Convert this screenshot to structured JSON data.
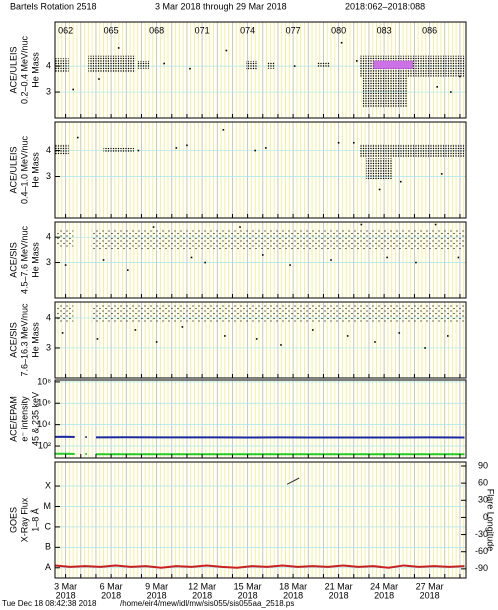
{
  "header": {
    "title": "Bartels Rotation 2518",
    "date_range": "3 Mar 2018 through 29 Mar 2018",
    "doy_range": "2018:062–2018:088"
  },
  "time_axis": {
    "xlim": [
      61.3,
      88.4
    ],
    "xticks": [
      62,
      63,
      64,
      65,
      66,
      67,
      68,
      69,
      70,
      71,
      72,
      73,
      74,
      75,
      76,
      77,
      78,
      79,
      80,
      81,
      82,
      83,
      84,
      85,
      86,
      87,
      88
    ],
    "doy_ticks": [
      {
        "value": 62,
        "label": "062"
      },
      {
        "value": 65,
        "label": "065"
      },
      {
        "value": 68,
        "label": "068"
      },
      {
        "value": 71,
        "label": "071"
      },
      {
        "value": 74,
        "label": "074"
      },
      {
        "value": 77,
        "label": "077"
      },
      {
        "value": 80,
        "label": "080"
      },
      {
        "value": 83,
        "label": "083"
      },
      {
        "value": 86,
        "label": "086"
      }
    ],
    "date_ticks": [
      {
        "value": 62,
        "label": "3 Mar"
      },
      {
        "value": 65,
        "label": "6 Mar"
      },
      {
        "value": 68,
        "label": "9 Mar"
      },
      {
        "value": 71,
        "label": "12 Mar"
      },
      {
        "value": 74,
        "label": "15 Mar"
      },
      {
        "value": 77,
        "label": "18 Mar"
      },
      {
        "value": 80,
        "label": "21 Mar"
      },
      {
        "value": 83,
        "label": "24 Mar"
      },
      {
        "value": 86,
        "label": "27 Mar"
      }
    ],
    "year": "2018"
  },
  "footer": {
    "timestamp": "Tue Dec 18 08:42:38 2018",
    "path": "/home/eir4/mew/idl/mw/sis055/sis055aa_2518.ps"
  },
  "chart_data": [
    {
      "type": "scatter",
      "ylabel": [
        "ACE/ULEIS",
        "0.2–0.4 MeV/nuc",
        "He Mass"
      ],
      "ylim": [
        2,
        5.7
      ],
      "yticks": [
        3,
        4
      ],
      "density": "dense",
      "clusters": [
        [
          61.3,
          62.2,
          3.75,
          4.3
        ],
        [
          63.5,
          66.6,
          3.75,
          4.4
        ],
        [
          66.7,
          67.5,
          3.9,
          4.2
        ],
        [
          73.9,
          74.6,
          3.85,
          4.2
        ],
        [
          75.3,
          75.8,
          3.9,
          4.15
        ],
        [
          78.6,
          79.4,
          3.95,
          4.15
        ],
        [
          81.4,
          88.3,
          3.6,
          4.4
        ],
        [
          81.6,
          84.5,
          2.4,
          3.6
        ]
      ],
      "highlight_color": "#c050e0",
      "highlight_clusters": [
        [
          82.3,
          84.9,
          3.9,
          4.2
        ]
      ],
      "points": {
        "x": [
          62.5,
          64.2,
          65.5,
          68.5,
          70.2,
          72.6,
          77.1,
          80.2,
          81.2,
          86.5,
          87.4,
          88.0
        ],
        "y": [
          3.1,
          3.5,
          4.7,
          4.1,
          3.9,
          4.6,
          4.0,
          4.9,
          4.2,
          3.2,
          3.0,
          3.6
        ]
      }
    },
    {
      "type": "scatter",
      "ylabel": [
        "ACE/ULEIS",
        "0.4–1.0 MeV/nuc",
        "He Mass"
      ],
      "ylim": [
        1.4,
        5.1
      ],
      "yticks": [
        3,
        4
      ],
      "density": "dense",
      "clusters": [
        [
          61.3,
          62.2,
          3.85,
          4.25
        ],
        [
          64.5,
          66.5,
          3.95,
          4.1
        ],
        [
          81.4,
          88.3,
          3.75,
          4.25
        ],
        [
          81.8,
          83.5,
          2.9,
          3.7
        ]
      ],
      "highlight_color": "#c050e0",
      "highlight_clusters": [],
      "points": {
        "x": [
          62.8,
          66.8,
          69.3,
          70.0,
          72.4,
          74.5,
          75.2,
          80.0,
          81.0,
          82.7,
          84.1,
          86.8
        ],
        "y": [
          4.5,
          4.0,
          4.1,
          4.2,
          4.8,
          4.0,
          4.1,
          4.3,
          4.3,
          2.5,
          2.8,
          3.1
        ]
      }
    },
    {
      "type": "scatter",
      "ylabel": [
        "ACE/SIS",
        "4.5–7.6 MeV/nuc",
        "He Mass"
      ],
      "ylim": [
        1.6,
        4.6
      ],
      "yticks": [
        3,
        4
      ],
      "density": "sparse",
      "clusters": [
        [
          61.3,
          62.5,
          3.6,
          4.3
        ],
        [
          63.7,
          88.3,
          3.5,
          4.3
        ]
      ],
      "highlight_color": "#c050e0",
      "highlight_clusters": [],
      "points": {
        "x": [
          62.0,
          64.5,
          66.1,
          67.8,
          70.3,
          71.2,
          73.5,
          75.0,
          76.8,
          79.5,
          81.5,
          83.2,
          85.1,
          86.4,
          87.9
        ],
        "y": [
          2.9,
          3.1,
          2.7,
          4.4,
          3.2,
          3.0,
          4.4,
          3.3,
          2.9,
          3.1,
          4.5,
          3.2,
          3.0,
          4.5,
          3.2
        ]
      }
    },
    {
      "type": "scatter",
      "ylabel": [
        "ACE/SIS",
        "7.6–16.3 MeV/nuc",
        "He Mass"
      ],
      "ylim": [
        2,
        4.53
      ],
      "yticks": [
        3,
        4
      ],
      "density": "sparse",
      "clusters": [
        [
          61.3,
          62.5,
          3.85,
          4.45
        ],
        [
          63.7,
          88.3,
          3.85,
          4.45
        ]
      ],
      "highlight_color": "#c050e0",
      "highlight_clusters": [],
      "points": {
        "x": [
          61.8,
          64.1,
          66.6,
          68.0,
          69.7,
          72.5,
          74.6,
          76.2,
          78.3,
          80.6,
          82.4,
          84.0,
          85.7,
          87.2
        ],
        "y": [
          3.5,
          3.3,
          3.6,
          3.2,
          3.7,
          3.4,
          3.3,
          3.1,
          3.6,
          3.4,
          3.2,
          3.5,
          3.0,
          3.4
        ]
      }
    },
    {
      "type": "line",
      "ylabel": [
        "ACE/EPAM",
        "e⁻ intensity",
        "45 & 235 keV"
      ],
      "log": true,
      "ylim": [
        7.6,
        150000000
      ],
      "yticks": [
        {
          "value": 100,
          "label": "10²"
        },
        {
          "value": 10000,
          "label": "10⁴"
        },
        {
          "value": 1000000,
          "label": "10⁶"
        },
        {
          "value": 100000000,
          "label": "10⁸"
        }
      ],
      "x": [
        61.3,
        62.0,
        62.6,
        62.9,
        63.3,
        63.6,
        64.0,
        66,
        68,
        70,
        72,
        74,
        76,
        78,
        80,
        82,
        84,
        86,
        88.3
      ],
      "series": [
        {
          "color": "#1a2aa0",
          "values": [
            720,
            740,
            700,
            null,
            690,
            null,
            650,
            660,
            640,
            640,
            650,
            630,
            640,
            630,
            620,
            620,
            630,
            640,
            630
          ]
        },
        {
          "color": "#22cc22",
          "values": [
            19,
            19,
            18,
            null,
            18,
            null,
            17,
            17,
            17,
            17,
            17,
            17,
            17,
            17,
            17,
            17,
            17,
            17,
            17
          ]
        }
      ]
    },
    {
      "type": "line",
      "ylabel": [
        "GOES",
        "X-Ray Flux",
        "1–8 Å"
      ],
      "log": true,
      "ylim": [
        3.16e-09,
        0.0015
      ],
      "yticks": [
        {
          "value": 1e-08,
          "label": "A"
        },
        {
          "value": 1e-07,
          "label": "B"
        },
        {
          "value": 1e-06,
          "label": "C"
        },
        {
          "value": 1e-05,
          "label": "M"
        },
        {
          "value": 0.0001,
          "label": "X"
        }
      ],
      "y2label": "Flare Longitude",
      "y2lim": [
        -106,
        97
      ],
      "y2ticks": [
        -90,
        -60,
        -30,
        0,
        30,
        60,
        90
      ],
      "x": [
        61.3,
        62.3,
        63.3,
        64.3,
        65.3,
        66.3,
        67.3,
        68.3,
        69.3,
        70.3,
        71.3,
        72.3,
        73.3,
        74.3,
        75.3,
        76.3,
        77.3,
        78.3,
        79.3,
        80.3,
        81.3,
        82.3,
        83.3,
        84.3,
        85.3,
        86.3,
        87.3,
        88.3
      ],
      "series": [
        {
          "color": "#cc2020",
          "values": [
            1.3e-08,
            1.1e-08,
            1.2e-08,
            1.1e-08,
            1.3e-08,
            1.1e-08,
            1.2e-08,
            1e-08,
            1.2e-08,
            1.1e-08,
            1.3e-08,
            1.1e-08,
            1e-08,
            1.2e-08,
            1.1e-08,
            1.3e-08,
            1.1e-08,
            1.2e-08,
            1.1e-08,
            1.3e-08,
            1.1e-08,
            1.2e-08,
            1e-08,
            1.3e-08,
            1.1e-08,
            1.2e-08,
            1.1e-08,
            1.2e-08
          ]
        }
      ],
      "flare": {
        "color": "#333333",
        "x": [
          76.6,
          77.4
        ],
        "y": [
          58,
          69
        ]
      }
    }
  ]
}
